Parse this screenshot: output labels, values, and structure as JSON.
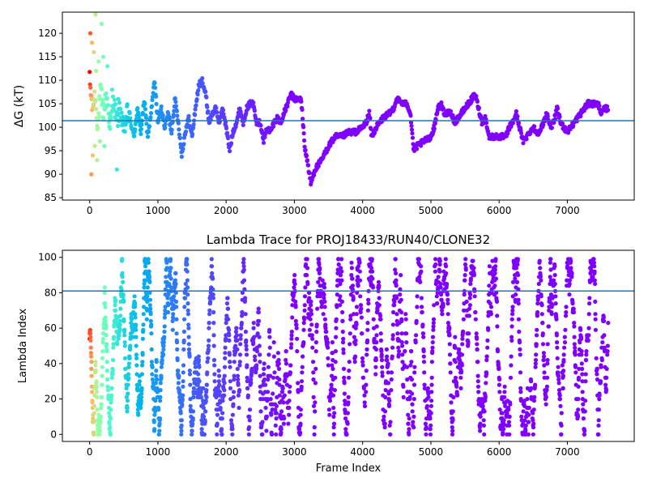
{
  "chart_data": [
    {
      "type": "scatter",
      "title": "",
      "xlabel": "",
      "ylabel": "ΔG (kT)",
      "xlim": [
        -400,
        7980
      ],
      "ylim": [
        84.5,
        124.5
      ],
      "xticks": [
        0,
        1000,
        2000,
        3000,
        4000,
        5000,
        6000,
        7000
      ],
      "yticks": [
        85,
        90,
        95,
        100,
        105,
        110,
        115,
        120
      ],
      "colormap": "rainbow (red → violet with frame index)",
      "hline": {
        "y": 101.4,
        "color": "#1f77b4"
      },
      "series": [
        {
          "trace_anchors": [
            [
              0,
              110
            ],
            [
              40,
              104
            ],
            [
              80,
              107
            ],
            [
              120,
              100
            ],
            [
              160,
              108
            ],
            [
              200,
              103
            ],
            [
              250,
              107
            ],
            [
              300,
              100
            ],
            [
              350,
              106
            ],
            [
              400,
              101
            ],
            [
              450,
              104
            ],
            [
              500,
              99
            ],
            [
              550,
              103
            ],
            [
              600,
              101
            ],
            [
              650,
              98
            ],
            [
              700,
              104
            ],
            [
              750,
              99
            ],
            [
              800,
              106
            ],
            [
              850,
              98
            ],
            [
              900,
              103
            ],
            [
              950,
              110
            ],
            [
              1000,
              101
            ],
            [
              1050,
              104
            ],
            [
              1100,
              100
            ],
            [
              1150,
              103
            ],
            [
              1200,
              99
            ],
            [
              1250,
              106
            ],
            [
              1300,
              101
            ],
            [
              1350,
              94
            ],
            [
              1400,
              99
            ],
            [
              1450,
              102
            ],
            [
              1500,
              98
            ],
            [
              1550,
              104
            ],
            [
              1600,
              109
            ],
            [
              1650,
              110
            ],
            [
              1700,
              107
            ],
            [
              1750,
              101
            ],
            [
              1800,
              103
            ],
            [
              1850,
              104
            ],
            [
              1900,
              101
            ],
            [
              1950,
              104
            ],
            [
              2000,
              100
            ],
            [
              2050,
              95
            ],
            [
              2100,
              99
            ],
            [
              2150,
              101
            ],
            [
              2200,
              104
            ],
            [
              2250,
              101
            ],
            [
              2300,
              104
            ],
            [
              2350,
              105
            ],
            [
              2400,
              105
            ],
            [
              2450,
              101
            ],
            [
              2500,
              101
            ],
            [
              2550,
              97
            ],
            [
              2600,
              100
            ],
            [
              2650,
              99
            ],
            [
              2700,
              101
            ],
            [
              2750,
              102
            ],
            [
              2800,
              101
            ],
            [
              2850,
              103
            ],
            [
              2900,
              105
            ],
            [
              2950,
              107
            ],
            [
              3000,
              106
            ],
            [
              3050,
              106
            ],
            [
              3100,
              106
            ],
            [
              3150,
              96
            ],
            [
              3200,
              92
            ],
            [
              3240,
              88
            ],
            [
              3300,
              91
            ],
            [
              3400,
              93
            ],
            [
              3500,
              96
            ],
            [
              3600,
              98
            ],
            [
              3700,
              98
            ],
            [
              3800,
              99
            ],
            [
              3900,
              99
            ],
            [
              4000,
              100
            ],
            [
              4050,
              101
            ],
            [
              4100,
              103
            ],
            [
              4130,
              98
            ],
            [
              4200,
              100
            ],
            [
              4300,
              102
            ],
            [
              4400,
              103
            ],
            [
              4450,
              104
            ],
            [
              4500,
              106
            ],
            [
              4600,
              105
            ],
            [
              4650,
              105
            ],
            [
              4700,
              103
            ],
            [
              4750,
              95
            ],
            [
              4800,
              96
            ],
            [
              4900,
              97
            ],
            [
              5000,
              98
            ],
            [
              5050,
              100
            ],
            [
              5100,
              104
            ],
            [
              5150,
              105
            ],
            [
              5200,
              103
            ],
            [
              5300,
              103
            ],
            [
              5350,
              101
            ],
            [
              5400,
              102
            ],
            [
              5500,
              104
            ],
            [
              5600,
              106
            ],
            [
              5650,
              107
            ],
            [
              5700,
              104
            ],
            [
              5750,
              101
            ],
            [
              5800,
              102
            ],
            [
              5850,
              98
            ],
            [
              5900,
              98
            ],
            [
              6000,
              98
            ],
            [
              6100,
              98
            ],
            [
              6150,
              100
            ],
            [
              6200,
              101
            ],
            [
              6250,
              103
            ],
            [
              6300,
              100
            ],
            [
              6350,
              97
            ],
            [
              6400,
              98
            ],
            [
              6500,
              100
            ],
            [
              6550,
              99
            ],
            [
              6600,
              99
            ],
            [
              6700,
              103
            ],
            [
              6750,
              100
            ],
            [
              6800,
              101
            ],
            [
              6850,
              104
            ],
            [
              6900,
              101
            ],
            [
              6950,
              100
            ],
            [
              7000,
              99
            ],
            [
              7100,
              101
            ],
            [
              7200,
              103
            ],
            [
              7250,
              104
            ],
            [
              7300,
              105
            ],
            [
              7400,
              105
            ],
            [
              7450,
              105
            ],
            [
              7500,
              103
            ],
            [
              7550,
              104
            ],
            [
              7600,
              104
            ]
          ],
          "early_outliers": [
            [
              10,
              120
            ],
            [
              25,
              90
            ],
            [
              35,
              118
            ],
            [
              45,
              94
            ],
            [
              60,
              116
            ],
            [
              75,
              96
            ],
            [
              85,
              124
            ],
            [
              95,
              112
            ],
            [
              110,
              93
            ],
            [
              130,
              114
            ],
            [
              150,
              97
            ],
            [
              175,
              122
            ],
            [
              200,
              115
            ],
            [
              215,
              96
            ],
            [
              260,
              113
            ],
            [
              330,
              108
            ],
            [
              400,
              91
            ],
            [
              420,
              106
            ]
          ]
        }
      ]
    },
    {
      "type": "scatter",
      "title": "Lambda Trace for PROJ18433/RUN40/CLONE32",
      "xlabel": "Frame Index",
      "ylabel": "Lambda Index",
      "xlim": [
        -400,
        7980
      ],
      "ylim": [
        -4,
        104
      ],
      "xticks": [
        0,
        1000,
        2000,
        3000,
        4000,
        5000,
        6000,
        7000
      ],
      "yticks": [
        0,
        20,
        40,
        60,
        80,
        100
      ],
      "colormap": "rainbow (red → violet with frame index)",
      "hline": {
        "y": 81,
        "color": "#1f77b4"
      },
      "series": [
        {
          "frames": [
            0,
            7600
          ],
          "lambda_range": [
            0,
            99
          ]
        }
      ]
    }
  ]
}
